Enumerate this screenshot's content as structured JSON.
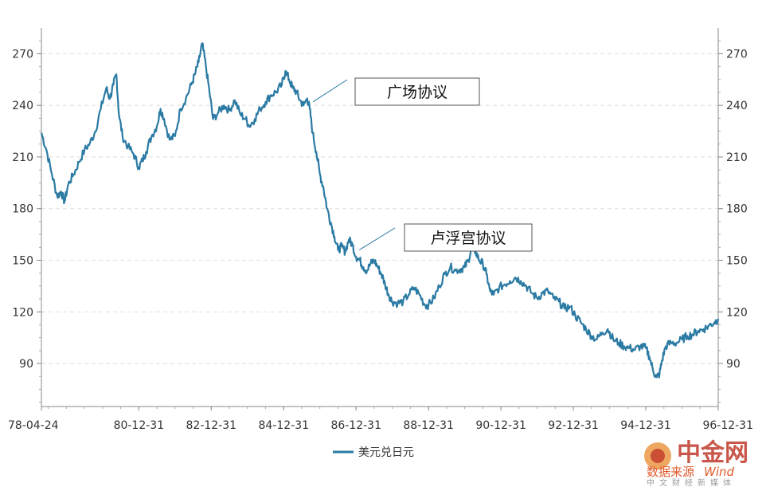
{
  "chart_data": {
    "type": "line",
    "title": "",
    "xlabel": "",
    "ylabel": "",
    "ylim": [
      65,
      285
    ],
    "y_ticks": [
      90,
      120,
      150,
      180,
      210,
      240,
      270
    ],
    "y_tick_labels": [
      "90",
      "120",
      "150",
      "180",
      "210",
      "240",
      "270"
    ],
    "x_tick_labels": [
      "78-04-24",
      "80-12-31",
      "82-12-31",
      "84-12-31",
      "86-12-31",
      "88-12-31",
      "90-12-31",
      "92-12-31",
      "94-12-31",
      "96-12-31"
    ],
    "x_tick_dates": [
      1978.31,
      1981.0,
      1983.0,
      1985.0,
      1987.0,
      1989.0,
      1991.0,
      1993.0,
      1995.0,
      1997.0
    ],
    "grid": "horizontal dashed",
    "legend_position": "bottom-center",
    "series": [
      {
        "name": "美元兑日元",
        "color": "#2a7aa3",
        "points": [
          [
            1978.31,
            224
          ],
          [
            1978.45,
            214
          ],
          [
            1978.6,
            200
          ],
          [
            1978.75,
            187
          ],
          [
            1978.85,
            190
          ],
          [
            1978.95,
            184
          ],
          [
            1979.05,
            194
          ],
          [
            1979.2,
            200
          ],
          [
            1979.35,
            207
          ],
          [
            1979.5,
            214
          ],
          [
            1979.65,
            218
          ],
          [
            1979.8,
            225
          ],
          [
            1979.95,
            238
          ],
          [
            1980.1,
            250
          ],
          [
            1980.2,
            244
          ],
          [
            1980.3,
            252
          ],
          [
            1980.38,
            258
          ],
          [
            1980.45,
            235
          ],
          [
            1980.55,
            222
          ],
          [
            1980.7,
            216
          ],
          [
            1980.85,
            212
          ],
          [
            1981.0,
            204
          ],
          [
            1981.1,
            208
          ],
          [
            1981.2,
            213
          ],
          [
            1981.35,
            222
          ],
          [
            1981.5,
            228
          ],
          [
            1981.6,
            238
          ],
          [
            1981.7,
            232
          ],
          [
            1981.85,
            220
          ],
          [
            1982.0,
            222
          ],
          [
            1982.15,
            238
          ],
          [
            1982.3,
            244
          ],
          [
            1982.45,
            252
          ],
          [
            1982.55,
            258
          ],
          [
            1982.65,
            265
          ],
          [
            1982.75,
            276
          ],
          [
            1982.85,
            263
          ],
          [
            1982.95,
            248
          ],
          [
            1983.05,
            232
          ],
          [
            1983.2,
            236
          ],
          [
            1983.35,
            240
          ],
          [
            1983.5,
            237
          ],
          [
            1983.65,
            243
          ],
          [
            1983.8,
            235
          ],
          [
            1983.95,
            232
          ],
          [
            1984.05,
            228
          ],
          [
            1984.2,
            232
          ],
          [
            1984.35,
            238
          ],
          [
            1984.5,
            242
          ],
          [
            1984.65,
            246
          ],
          [
            1984.8,
            248
          ],
          [
            1984.95,
            252
          ],
          [
            1985.05,
            260
          ],
          [
            1985.15,
            255
          ],
          [
            1985.25,
            250
          ],
          [
            1985.35,
            248
          ],
          [
            1985.45,
            243
          ],
          [
            1985.55,
            240
          ],
          [
            1985.65,
            244
          ],
          [
            1985.72,
            238
          ],
          [
            1985.8,
            224
          ],
          [
            1985.9,
            213
          ],
          [
            1986.0,
            200
          ],
          [
            1986.1,
            192
          ],
          [
            1986.2,
            180
          ],
          [
            1986.3,
            172
          ],
          [
            1986.4,
            164
          ],
          [
            1986.5,
            156
          ],
          [
            1986.6,
            158
          ],
          [
            1986.7,
            155
          ],
          [
            1986.8,
            162
          ],
          [
            1986.9,
            159
          ],
          [
            1987.0,
            152
          ],
          [
            1987.1,
            150
          ],
          [
            1987.2,
            146
          ],
          [
            1987.3,
            144
          ],
          [
            1987.4,
            148
          ],
          [
            1987.5,
            150
          ],
          [
            1987.6,
            146
          ],
          [
            1987.7,
            142
          ],
          [
            1987.8,
            136
          ],
          [
            1987.9,
            130
          ],
          [
            1988.0,
            126
          ],
          [
            1988.15,
            125
          ],
          [
            1988.3,
            126
          ],
          [
            1988.45,
            130
          ],
          [
            1988.6,
            134
          ],
          [
            1988.75,
            130
          ],
          [
            1988.9,
            124
          ],
          [
            1989.0,
            124
          ],
          [
            1989.15,
            128
          ],
          [
            1989.3,
            135
          ],
          [
            1989.45,
            142
          ],
          [
            1989.6,
            146
          ],
          [
            1989.75,
            144
          ],
          [
            1989.9,
            145
          ],
          [
            1990.0,
            146
          ],
          [
            1990.1,
            150
          ],
          [
            1990.2,
            158
          ],
          [
            1990.3,
            155
          ],
          [
            1990.4,
            150
          ],
          [
            1990.5,
            148
          ],
          [
            1990.6,
            142
          ],
          [
            1990.7,
            132
          ],
          [
            1990.8,
            130
          ],
          [
            1990.95,
            134
          ],
          [
            1991.1,
            136
          ],
          [
            1991.25,
            138
          ],
          [
            1991.4,
            140
          ],
          [
            1991.55,
            138
          ],
          [
            1991.7,
            135
          ],
          [
            1991.85,
            131
          ],
          [
            1992.0,
            128
          ],
          [
            1992.15,
            131
          ],
          [
            1992.3,
            132
          ],
          [
            1992.45,
            128
          ],
          [
            1992.6,
            126
          ],
          [
            1992.75,
            122
          ],
          [
            1992.9,
            123
          ],
          [
            1993.05,
            118
          ],
          [
            1993.2,
            114
          ],
          [
            1993.35,
            110
          ],
          [
            1993.5,
            106
          ],
          [
            1993.65,
            104
          ],
          [
            1993.8,
            108
          ],
          [
            1993.95,
            110
          ],
          [
            1994.1,
            104
          ],
          [
            1994.25,
            102
          ],
          [
            1994.4,
            100
          ],
          [
            1994.55,
            99
          ],
          [
            1994.7,
            98
          ],
          [
            1994.85,
            100
          ],
          [
            1995.0,
            99
          ],
          [
            1995.1,
            94
          ],
          [
            1995.2,
            86
          ],
          [
            1995.3,
            82
          ],
          [
            1995.38,
            84
          ],
          [
            1995.45,
            92
          ],
          [
            1995.55,
            100
          ],
          [
            1995.7,
            102
          ],
          [
            1995.85,
            102
          ],
          [
            1996.0,
            104
          ],
          [
            1996.15,
            106
          ],
          [
            1996.3,
            107
          ],
          [
            1996.45,
            109
          ],
          [
            1996.6,
            110
          ],
          [
            1996.75,
            112
          ],
          [
            1996.9,
            114
          ],
          [
            1997.0,
            116
          ]
        ]
      }
    ],
    "annotations": [
      {
        "text": "广场协议",
        "x": 1985.72,
        "y": 242
      },
      {
        "text": "卢浮宫协议",
        "x": 1987.0,
        "y": 156
      }
    ]
  },
  "watermark": {
    "brand": "中金网",
    "source_label": "数据来源",
    "source_name": "Wind",
    "sub": "中文财经新媒体",
    "color": "#c0392b"
  }
}
